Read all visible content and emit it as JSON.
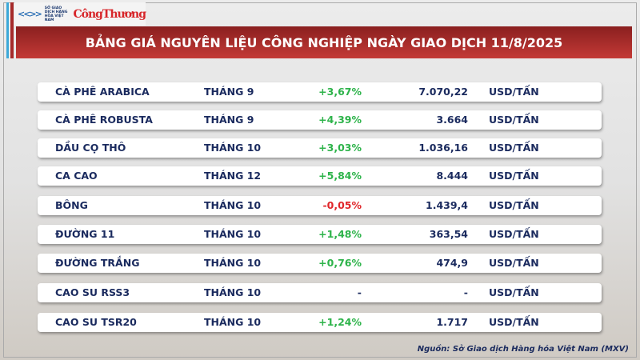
{
  "logo": {
    "mxv_text": "SỞ GIAO DỊCH HÀNG HÓA VIỆT NAM",
    "brand": "CôngThương"
  },
  "title": "BẢNG GIÁ NGUYÊN LIỆU CÔNG NGHIỆP NGÀY GIAO DỊCH 11/8/2025",
  "colors": {
    "positive": "#2db34a",
    "negative": "#e0262a",
    "text": "#1a2a5e",
    "title_bg": "#b0302d"
  },
  "rows": [
    {
      "name": "CÀ PHÊ ARABICA",
      "month": "THÁNG 9",
      "change": "+3,67%",
      "price": "7.070,22",
      "unit": "USD/TẤN"
    },
    {
      "name": "CÀ PHÊ ROBUSTA",
      "month": "THÁNG 9",
      "change": "+4,39%",
      "price": "3.664",
      "unit": "USD/TẤN"
    },
    {
      "name": "DẦU CỌ THÔ",
      "month": "THÁNG 10",
      "change": "+3,03%",
      "price": "1.036,16",
      "unit": "USD/TẤN"
    },
    {
      "name": "CA CAO",
      "month": "THÁNG 12",
      "change": "+5,84%",
      "price": "8.444",
      "unit": "USD/TẤN"
    },
    {
      "name": "BÔNG",
      "month": "THÁNG 10",
      "change": "-0,05%",
      "price": "1.439,4",
      "unit": "USD/TẤN"
    },
    {
      "name": "ĐƯỜNG 11",
      "month": "THÁNG 10",
      "change": "+1,48%",
      "price": "363,54",
      "unit": "USD/TẤN"
    },
    {
      "name": "ĐƯỜNG TRẮNG",
      "month": "THÁNG 10",
      "change": "+0,76%",
      "price": "474,9",
      "unit": "USD/TẤN"
    },
    {
      "name": "CAO SU RSS3",
      "month": "THÁNG 10",
      "change": "-",
      "price": "-",
      "unit": "USD/TẤN"
    },
    {
      "name": "CAO SU TSR20",
      "month": "THÁNG 10",
      "change": "+1,24%",
      "price": "1.717",
      "unit": "USD/TẤN"
    }
  ],
  "source": "Nguồn: Sở Giao dịch Hàng hóa Việt Nam (MXV)"
}
